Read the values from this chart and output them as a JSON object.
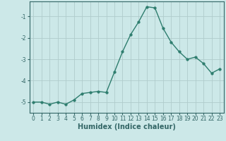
{
  "x": [
    0,
    1,
    2,
    3,
    4,
    5,
    6,
    7,
    8,
    9,
    10,
    11,
    12,
    13,
    14,
    15,
    16,
    17,
    18,
    19,
    20,
    21,
    22,
    23
  ],
  "y": [
    -5.0,
    -5.0,
    -5.1,
    -5.0,
    -5.1,
    -4.9,
    -4.6,
    -4.55,
    -4.5,
    -4.55,
    -3.6,
    -2.65,
    -1.85,
    -1.25,
    -0.55,
    -0.6,
    -1.55,
    -2.2,
    -2.65,
    -3.0,
    -2.9,
    -3.2,
    -3.65,
    -3.45
  ],
  "line_color": "#2e7d6e",
  "marker": "o",
  "markersize": 2.5,
  "linewidth": 1.0,
  "bg_color": "#cce8e8",
  "grid_color": "#b0cccc",
  "xlabel": "Humidex (Indice chaleur)",
  "xlabel_fontsize": 7,
  "xlim": [
    -0.5,
    23.5
  ],
  "ylim": [
    -5.5,
    -0.3
  ],
  "yticks": [
    -5,
    -4,
    -3,
    -2,
    -1
  ],
  "xticks": [
    0,
    1,
    2,
    3,
    4,
    5,
    6,
    7,
    8,
    9,
    10,
    11,
    12,
    13,
    14,
    15,
    16,
    17,
    18,
    19,
    20,
    21,
    22,
    23
  ],
  "tick_fontsize": 5.5,
  "axis_color": "#336666"
}
